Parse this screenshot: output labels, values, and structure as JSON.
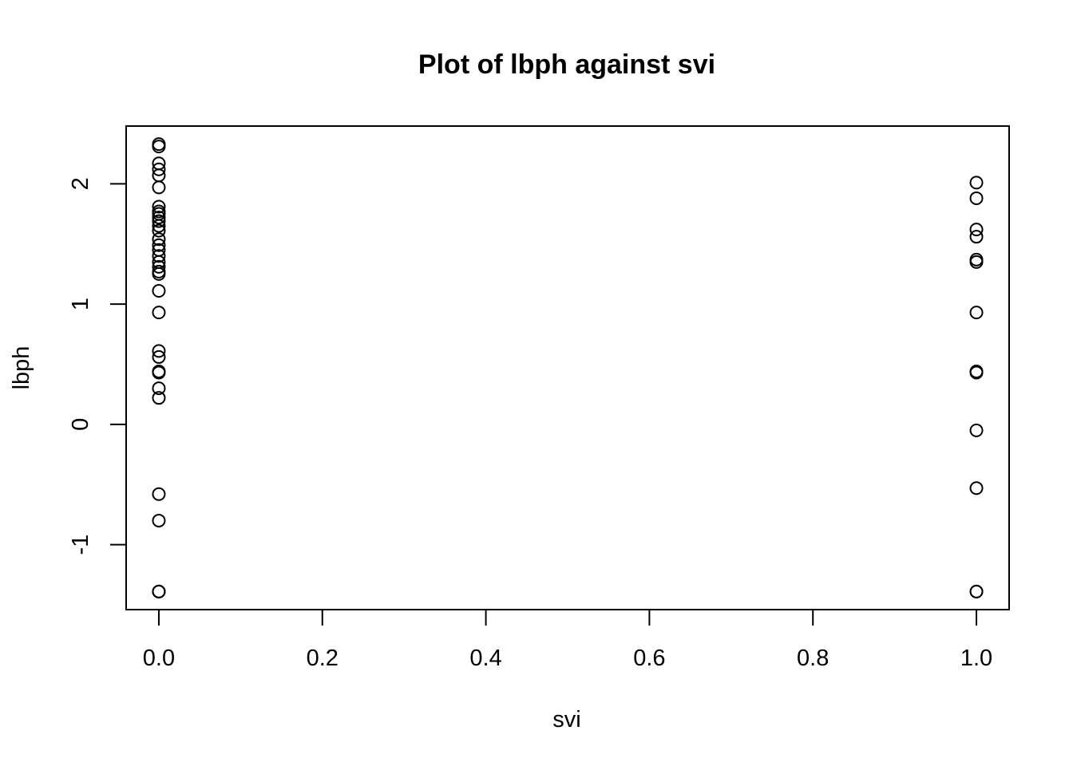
{
  "chart_data": {
    "type": "scatter",
    "title": "Plot of  lbph  against svi",
    "xlabel": "svi",
    "ylabel": "lbph",
    "xlim": [
      -0.04,
      1.04
    ],
    "ylim": [
      -1.54,
      2.48
    ],
    "xticks": [
      0.0,
      0.2,
      0.4,
      0.6,
      0.8,
      1.0
    ],
    "xtick_labels": [
      "0.0",
      "0.2",
      "0.4",
      "0.6",
      "0.8",
      "1.0"
    ],
    "yticks": [
      -1,
      0,
      1,
      2
    ],
    "ytick_labels": [
      "-1",
      "0",
      "1",
      "2"
    ],
    "grid": false,
    "legend": "none",
    "marker": "open-circle",
    "series": [
      {
        "points": [
          {
            "x": 0,
            "y": 2.33
          },
          {
            "x": 0,
            "y": 2.31
          },
          {
            "x": 0,
            "y": 2.17
          },
          {
            "x": 0,
            "y": 2.12
          },
          {
            "x": 0,
            "y": 2.07
          },
          {
            "x": 0,
            "y": 1.97
          },
          {
            "x": 0,
            "y": 1.81
          },
          {
            "x": 0,
            "y": 1.77
          },
          {
            "x": 0,
            "y": 1.75
          },
          {
            "x": 0,
            "y": 1.72
          },
          {
            "x": 0,
            "y": 1.69
          },
          {
            "x": 0,
            "y": 1.65
          },
          {
            "x": 0,
            "y": 1.61
          },
          {
            "x": 0,
            "y": 1.54
          },
          {
            "x": 0,
            "y": 1.49
          },
          {
            "x": 0,
            "y": 1.45
          },
          {
            "x": 0,
            "y": 1.4
          },
          {
            "x": 0,
            "y": 1.35
          },
          {
            "x": 0,
            "y": 1.31
          },
          {
            "x": 0,
            "y": 1.27
          },
          {
            "x": 0,
            "y": 1.25
          },
          {
            "x": 0,
            "y": 1.11
          },
          {
            "x": 0,
            "y": 0.93
          },
          {
            "x": 0,
            "y": 0.61
          },
          {
            "x": 0,
            "y": 0.56
          },
          {
            "x": 0,
            "y": 0.44
          },
          {
            "x": 0,
            "y": 0.43
          },
          {
            "x": 0,
            "y": 0.3
          },
          {
            "x": 0,
            "y": 0.22
          },
          {
            "x": 0,
            "y": -0.58
          },
          {
            "x": 0,
            "y": -0.8
          },
          {
            "x": 0,
            "y": -1.39
          },
          {
            "x": 0,
            "y": -1.39
          },
          {
            "x": 0,
            "y": -1.39
          },
          {
            "x": 1,
            "y": 2.01
          },
          {
            "x": 1,
            "y": 1.88
          },
          {
            "x": 1,
            "y": 1.62
          },
          {
            "x": 1,
            "y": 1.56
          },
          {
            "x": 1,
            "y": 1.37
          },
          {
            "x": 1,
            "y": 1.35
          },
          {
            "x": 1,
            "y": 0.93
          },
          {
            "x": 1,
            "y": 0.44
          },
          {
            "x": 1,
            "y": 0.43
          },
          {
            "x": 1,
            "y": -0.05
          },
          {
            "x": 1,
            "y": -0.53
          },
          {
            "x": 1,
            "y": -1.39
          },
          {
            "x": 1,
            "y": -1.39
          }
        ]
      }
    ]
  }
}
